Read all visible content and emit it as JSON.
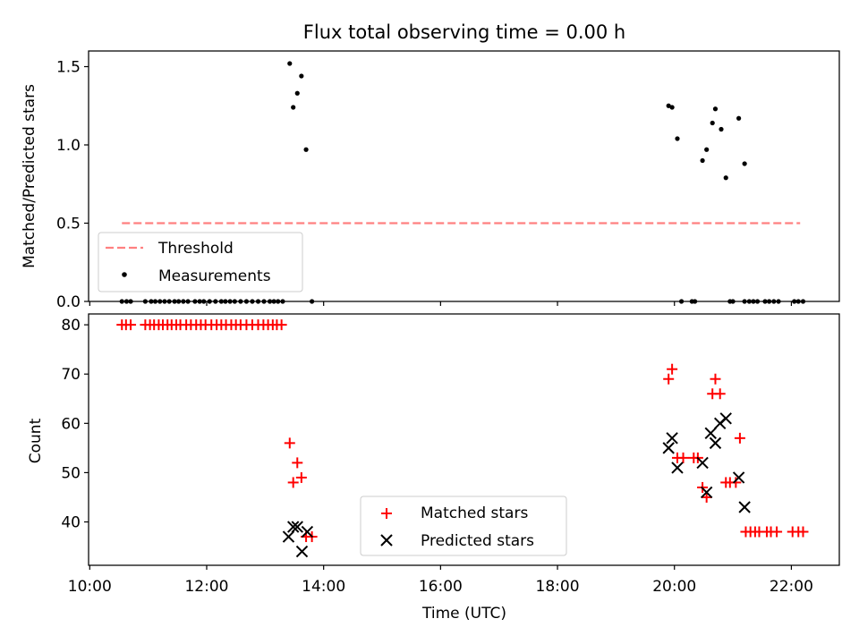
{
  "chart_data": [
    {
      "type": "scatter",
      "title": "Flux total observing time = 0.00 h",
      "xlabel": "",
      "ylabel": "Matched/Predicted stars",
      "xlim": [
        9.98,
        22.82
      ],
      "ylim": [
        0.0,
        1.6
      ],
      "yticks": [
        0.0,
        0.5,
        1.0,
        1.5
      ],
      "ytick_labels": [
        "0.0",
        "0.5",
        "1.0",
        "1.5"
      ],
      "legend": {
        "position": "lower-left",
        "entries": [
          "Threshold",
          "Measurements"
        ]
      },
      "threshold": {
        "name": "Threshold",
        "value": 0.5,
        "x_start": 10.55,
        "x_end": 22.15,
        "color": "#ff8080",
        "style": "dashed"
      },
      "series": [
        {
          "name": "Measurements",
          "color": "#000000",
          "marker": "dot",
          "x": [
            13.42,
            13.48,
            13.55,
            13.62,
            13.7,
            19.9,
            19.96,
            20.05,
            20.48,
            20.55,
            20.65,
            20.7,
            20.8,
            20.88,
            21.1,
            21.2,
            10.55,
            10.63,
            10.7,
            10.95,
            11.05,
            11.12,
            11.2,
            11.28,
            11.36,
            11.45,
            11.52,
            11.6,
            11.68,
            11.8,
            11.88,
            11.95,
            12.05,
            12.15,
            12.25,
            12.32,
            12.4,
            12.48,
            12.58,
            12.68,
            12.78,
            12.88,
            12.98,
            13.08,
            13.15,
            13.22,
            13.3,
            13.8,
            20.12,
            20.3,
            20.35,
            20.95,
            21.0,
            21.2,
            21.28,
            21.35,
            21.42,
            21.55,
            21.62,
            21.7,
            21.78,
            22.05,
            22.12,
            22.2
          ],
          "y": [
            1.52,
            1.24,
            1.33,
            1.44,
            0.97,
            1.25,
            1.24,
            1.04,
            0.9,
            0.97,
            1.14,
            1.23,
            1.1,
            0.79,
            1.17,
            0.88,
            0,
            0,
            0,
            0,
            0,
            0,
            0,
            0,
            0,
            0,
            0,
            0,
            0,
            0,
            0,
            0,
            0,
            0,
            0,
            0,
            0,
            0,
            0,
            0,
            0,
            0,
            0,
            0,
            0,
            0,
            0,
            0,
            0,
            0,
            0,
            0,
            0,
            0,
            0,
            0,
            0,
            0,
            0,
            0,
            0,
            0,
            0,
            0
          ]
        }
      ]
    },
    {
      "type": "scatter",
      "title": "",
      "xlabel": "Time (UTC)",
      "ylabel": "Count",
      "xlim": [
        9.98,
        22.82
      ],
      "ylim": [
        31.2,
        82.2
      ],
      "xticks": [
        10,
        12,
        14,
        16,
        18,
        20,
        22
      ],
      "xtick_labels": [
        "10:00",
        "12:00",
        "14:00",
        "16:00",
        "18:00",
        "20:00",
        "22:00"
      ],
      "yticks": [
        40,
        50,
        60,
        70,
        80
      ],
      "ytick_labels": [
        "40",
        "50",
        "60",
        "70",
        "80"
      ],
      "legend": {
        "position": "lower-center",
        "entries": [
          "Matched stars",
          "Predicted stars"
        ]
      },
      "series": [
        {
          "name": "Matched stars",
          "color": "#ff0000",
          "marker": "plus",
          "x": [
            10.55,
            10.62,
            10.7,
            10.95,
            11.03,
            11.1,
            11.18,
            11.25,
            11.33,
            11.4,
            11.48,
            11.55,
            11.65,
            11.73,
            11.82,
            11.9,
            11.98,
            12.08,
            12.17,
            12.25,
            12.33,
            12.42,
            12.5,
            12.58,
            12.68,
            12.78,
            12.88,
            12.97,
            13.05,
            13.13,
            13.2,
            13.28,
            13.42,
            13.48,
            13.55,
            13.62,
            13.7,
            13.8,
            19.9,
            19.96,
            20.05,
            20.15,
            20.33,
            20.4,
            20.48,
            20.55,
            20.65,
            20.7,
            20.78,
            20.88,
            20.95,
            21.05,
            21.12,
            21.22,
            21.3,
            21.38,
            21.45,
            21.58,
            21.65,
            21.75,
            22.02,
            22.12,
            22.2
          ],
          "y": [
            80,
            80,
            80,
            80,
            80,
            80,
            80,
            80,
            80,
            80,
            80,
            80,
            80,
            80,
            80,
            80,
            80,
            80,
            80,
            80,
            80,
            80,
            80,
            80,
            80,
            80,
            80,
            80,
            80,
            80,
            80,
            80,
            56,
            48,
            52,
            49,
            37,
            37,
            69,
            71,
            53,
            53,
            53,
            53,
            47,
            45,
            66,
            69,
            66,
            48,
            48,
            48,
            57,
            38,
            38,
            38,
            38,
            38,
            38,
            38,
            38,
            38,
            38
          ]
        },
        {
          "name": "Predicted stars",
          "color": "#000000",
          "marker": "x",
          "x": [
            13.4,
            13.48,
            13.55,
            13.63,
            13.72,
            19.9,
            19.96,
            20.05,
            20.48,
            20.55,
            20.62,
            20.7,
            20.78,
            20.88,
            21.1,
            21.2
          ],
          "y": [
            37,
            39,
            39,
            34,
            38,
            55,
            57,
            51,
            52,
            46,
            58,
            56,
            60,
            61,
            49,
            43
          ]
        }
      ]
    }
  ]
}
